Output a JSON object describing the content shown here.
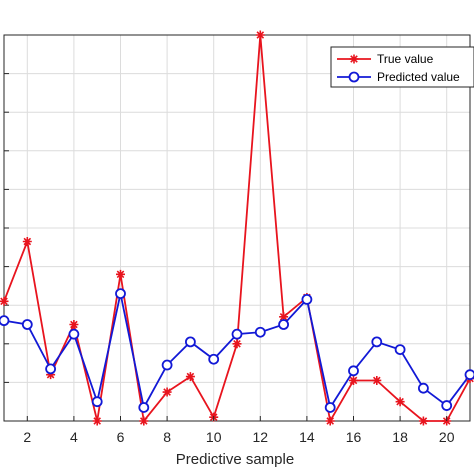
{
  "chart_data": {
    "type": "line",
    "title": "",
    "xlabel": "Predictive sample",
    "ylabel": "",
    "x": [
      1,
      2,
      3,
      4,
      5,
      6,
      7,
      8,
      9,
      10,
      11,
      12,
      13,
      14,
      15,
      16,
      17,
      18,
      19,
      20,
      21
    ],
    "xlim": [
      1,
      21
    ],
    "ylim": [
      0,
      10
    ],
    "xticks": [
      2,
      4,
      6,
      8,
      10,
      12,
      14,
      16,
      18,
      20
    ],
    "xtick_labels": [
      "2",
      "4",
      "6",
      "8",
      "10",
      "12",
      "14",
      "16",
      "18",
      "20"
    ],
    "ygrid_lines": [
      1,
      2,
      3,
      4,
      5,
      6,
      7,
      8,
      9
    ],
    "grid": true,
    "legend_position": "top-right",
    "series": [
      {
        "name": "True value",
        "color": "#e8141e",
        "marker": "asterisk",
        "values": [
          3.1,
          4.65,
          1.2,
          2.5,
          0.0,
          3.8,
          0.0,
          0.75,
          1.15,
          0.1,
          2.0,
          10.0,
          2.7,
          3.2,
          0.0,
          1.05,
          1.05,
          0.5,
          0.0,
          0.0,
          1.1
        ]
      },
      {
        "name": "Predicted value",
        "color": "#1219d6",
        "marker": "circle",
        "values": [
          2.6,
          2.5,
          1.35,
          2.25,
          0.5,
          3.3,
          0.35,
          1.45,
          2.05,
          1.6,
          2.25,
          2.3,
          2.5,
          3.15,
          0.35,
          1.3,
          2.05,
          1.85,
          0.85,
          0.4,
          1.2
        ]
      }
    ]
  }
}
